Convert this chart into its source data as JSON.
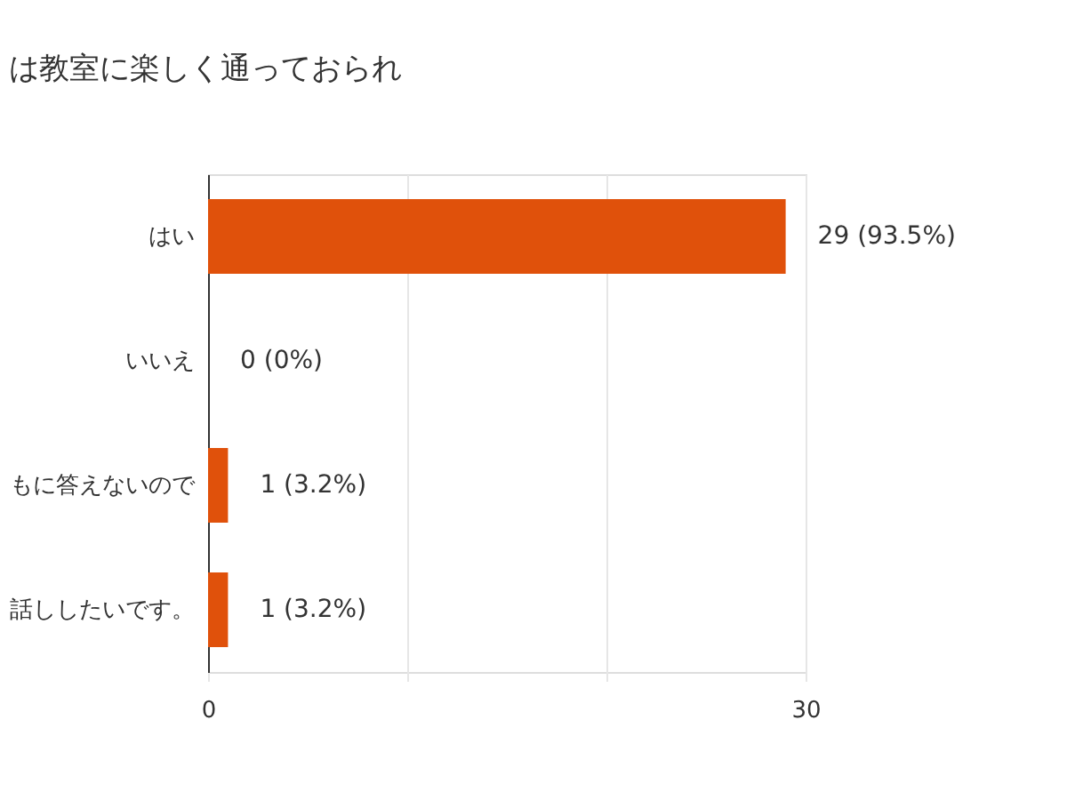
{
  "chart_data": {
    "type": "bar",
    "orientation": "horizontal",
    "title": "は教室に楽しく通っておられ",
    "categories": [
      "はい",
      "いいえ",
      "もに答えないので",
      "話ししたいです。"
    ],
    "values": [
      29,
      0,
      1,
      1
    ],
    "color": "#e0510b",
    "value_labels": [
      "29 (93.5%)",
      "0 (0%)",
      "1 (3.2%)",
      "1 (3.2%)"
    ],
    "xlim": [
      0,
      30
    ],
    "xticks": [
      0,
      {
        "value": 10,
        "label": null
      },
      {
        "value": 20,
        "label": null
      },
      30
    ],
    "grid": "x"
  }
}
